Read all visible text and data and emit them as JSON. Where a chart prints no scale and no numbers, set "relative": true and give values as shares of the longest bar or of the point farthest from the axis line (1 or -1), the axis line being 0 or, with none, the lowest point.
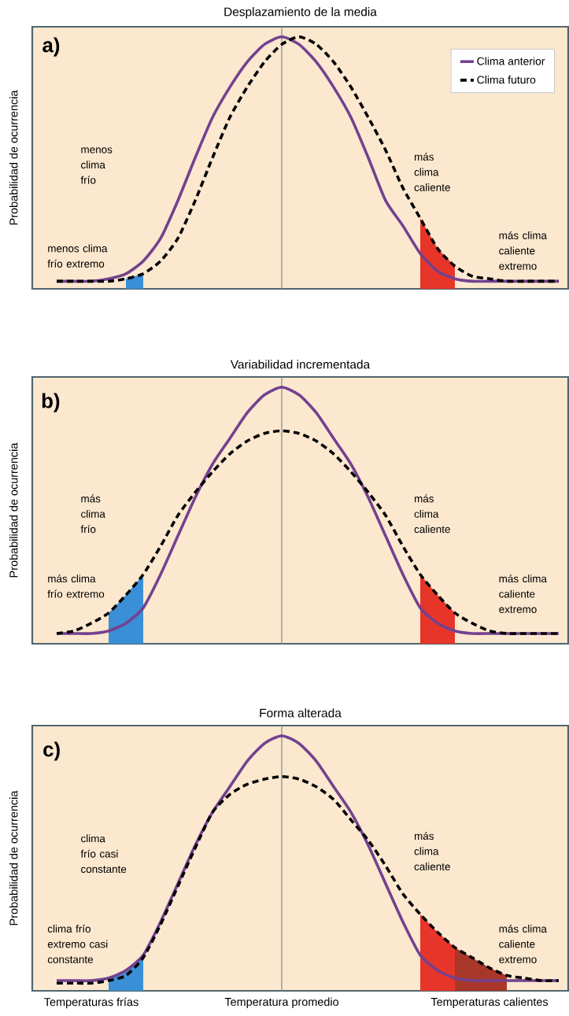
{
  "chart_data": [
    {
      "type": "line",
      "title": "Desplazamiento de la media",
      "ylabel": "Probabilidad de ocurrencia",
      "relative": true,
      "tick_labels": false,
      "legend": "top right",
      "marker": "none",
      "categories": [
        null,
        null,
        "Temperaturas frías",
        null,
        null,
        null,
        null,
        null,
        null,
        null,
        null,
        null,
        null,
        "Temperatura promedio",
        null,
        null,
        null,
        null,
        null,
        null,
        null,
        null,
        null,
        null,
        null,
        "Temperaturas calientes",
        null,
        null,
        null,
        null
      ],
      "annotations": [
        "a)",
        "menos clima frío",
        "menos clima frío extremo",
        "más clima caliente",
        "más clima caliente extremo"
      ],
      "ref_lines": [
        {
          "axis": "x",
          "value": "Temperatura promedio",
          "color": "#7f939b"
        }
      ],
      "series": [
        {
          "type": "area",
          "color": "#3a8fd6",
          "values": [
            null,
            null,
            null,
            null,
            0.04,
            0.06,
            null,
            null,
            null,
            null,
            null,
            null,
            null,
            null,
            null,
            null,
            null,
            null,
            null,
            null,
            null,
            null,
            null,
            null,
            null,
            null,
            null,
            null,
            null,
            null
          ]
        },
        {
          "type": "area",
          "color": "#e8352a",
          "values": [
            null,
            null,
            null,
            null,
            null,
            null,
            null,
            null,
            null,
            null,
            null,
            null,
            null,
            null,
            null,
            null,
            null,
            null,
            null,
            null,
            null,
            0.28,
            0.16,
            0.09,
            null,
            null,
            null,
            null,
            null,
            null
          ]
        },
        {
          "name": "Clima anterior",
          "color": "#74418f",
          "line_style": "solid",
          "values": [
            0.03,
            0.03,
            0.03,
            0.04,
            0.06,
            0.11,
            0.2,
            0.35,
            0.52,
            0.68,
            0.8,
            0.9,
            0.97,
            1,
            0.97,
            0.9,
            0.8,
            0.68,
            0.52,
            0.35,
            0.25,
            0.14,
            0.07,
            0.04,
            0.03,
            0.03,
            0.03,
            0.03,
            0.03,
            0.03
          ]
        },
        {
          "name": "Clima futuro",
          "color": "#000000",
          "line_style": "dashed",
          "values": [
            0.03,
            0.03,
            0.03,
            0.03,
            0.04,
            0.06,
            0.11,
            0.2,
            0.35,
            0.52,
            0.68,
            0.8,
            0.9,
            0.97,
            1,
            0.97,
            0.9,
            0.8,
            0.68,
            0.55,
            0.4,
            0.28,
            0.16,
            0.09,
            0.05,
            0.04,
            0.03,
            0.03,
            0.03,
            0.03
          ]
        }
      ]
    },
    {
      "type": "line",
      "title": "Variabilidad incrementada",
      "ylabel": "Probabilidad de ocurrencia",
      "relative": true,
      "tick_labels": false,
      "marker": "none",
      "categories": [
        null,
        null,
        "Temperaturas frías",
        null,
        null,
        null,
        null,
        null,
        null,
        null,
        null,
        null,
        null,
        "Temperatura promedio",
        null,
        null,
        null,
        null,
        null,
        null,
        null,
        null,
        null,
        null,
        null,
        "Temperaturas calientes",
        null,
        null,
        null,
        null
      ],
      "annotations": [
        "b)",
        "más clima frío",
        "más clima frío extremo",
        "más clima caliente",
        "más clima caliente extremo"
      ],
      "ref_lines": [
        {
          "axis": "x",
          "value": "Temperatura promedio",
          "color": "#7f939b"
        }
      ],
      "series": [
        {
          "type": "area",
          "color": "#3a8fd6",
          "values": [
            null,
            null,
            null,
            0.12,
            0.19,
            0.27,
            null,
            null,
            null,
            null,
            null,
            null,
            null,
            null,
            null,
            null,
            null,
            null,
            null,
            null,
            null,
            null,
            null,
            null,
            null,
            null,
            null,
            null,
            null,
            null
          ]
        },
        {
          "type": "area",
          "color": "#e8352a",
          "values": [
            null,
            null,
            null,
            null,
            null,
            null,
            null,
            null,
            null,
            null,
            null,
            null,
            null,
            null,
            null,
            null,
            null,
            null,
            null,
            null,
            null,
            0.27,
            0.19,
            0.12,
            null,
            null,
            null,
            null,
            null,
            null
          ]
        },
        {
          "color": "#74418f",
          "line_style": "solid",
          "values": [
            0.04,
            0.04,
            0.04,
            0.05,
            0.08,
            0.14,
            0.27,
            0.42,
            0.57,
            0.7,
            0.8,
            0.9,
            0.97,
            1,
            0.97,
            0.9,
            0.8,
            0.7,
            0.57,
            0.42,
            0.27,
            0.14,
            0.08,
            0.05,
            0.04,
            0.04,
            0.04,
            0.04,
            0.04,
            0.04
          ]
        },
        {
          "color": "#000000",
          "line_style": "dashed",
          "values": [
            0.04,
            0.05,
            0.08,
            0.12,
            0.19,
            0.27,
            0.38,
            0.5,
            0.59,
            0.67,
            0.74,
            0.79,
            0.82,
            0.83,
            0.82,
            0.79,
            0.74,
            0.67,
            0.59,
            0.5,
            0.38,
            0.27,
            0.19,
            0.12,
            0.08,
            0.05,
            0.04,
            0.04,
            0.04,
            0.04
          ]
        }
      ]
    },
    {
      "type": "line",
      "title": "Forma alterada",
      "ylabel": "Probabilidad de ocurrencia",
      "relative": true,
      "tick_labels": "x",
      "marker": "none",
      "categories": [
        null,
        null,
        "Temperaturas frías",
        null,
        null,
        null,
        null,
        null,
        null,
        null,
        null,
        null,
        null,
        "Temperatura promedio",
        null,
        null,
        null,
        null,
        null,
        null,
        null,
        null,
        null,
        null,
        null,
        "Temperaturas calientes",
        null,
        null,
        null,
        null
      ],
      "annotations": [
        "c)",
        "clima frío casi constante",
        "clima frío extremo casi constante",
        "más clima caliente",
        "más clima caliente extremo"
      ],
      "ref_lines": [
        {
          "axis": "x",
          "value": "Temperatura promedio",
          "color": "#7f939b"
        }
      ],
      "series": [
        {
          "type": "area",
          "color": "#3a8fd6",
          "values": [
            null,
            null,
            null,
            0.05,
            0.08,
            0.14,
            null,
            null,
            null,
            null,
            null,
            null,
            null,
            null,
            null,
            null,
            null,
            null,
            null,
            null,
            null,
            null,
            null,
            null,
            null,
            null,
            null,
            null,
            null,
            null
          ]
        },
        {
          "type": "area",
          "color": "#e8352a",
          "values": [
            null,
            null,
            null,
            null,
            null,
            null,
            null,
            null,
            null,
            null,
            null,
            null,
            null,
            null,
            null,
            null,
            null,
            null,
            null,
            null,
            null,
            0.3,
            0.23,
            0.17,
            null,
            null,
            null,
            null,
            null,
            null
          ]
        },
        {
          "type": "area",
          "color": "#a8372a",
          "values": [
            null,
            null,
            null,
            null,
            null,
            null,
            null,
            null,
            null,
            null,
            null,
            null,
            null,
            null,
            null,
            null,
            null,
            null,
            null,
            null,
            null,
            null,
            null,
            0.17,
            0.13,
            0.09,
            0.06,
            null,
            null,
            null
          ]
        },
        {
          "color": "#74418f",
          "line_style": "solid",
          "values": [
            0.04,
            0.04,
            0.04,
            0.05,
            0.08,
            0.14,
            0.27,
            0.42,
            0.57,
            0.7,
            0.8,
            0.9,
            0.97,
            1,
            0.97,
            0.9,
            0.8,
            0.7,
            0.57,
            0.42,
            0.27,
            0.14,
            0.08,
            0.05,
            0.04,
            0.04,
            0.04,
            0.04,
            0.04,
            0.04
          ]
        },
        {
          "color": "#000000",
          "line_style": "dashed",
          "values": [
            0.03,
            0.03,
            0.03,
            0.04,
            0.06,
            0.13,
            0.26,
            0.41,
            0.56,
            0.7,
            0.77,
            0.81,
            0.83,
            0.84,
            0.83,
            0.8,
            0.75,
            0.67,
            0.59,
            0.49,
            0.38,
            0.3,
            0.23,
            0.17,
            0.13,
            0.09,
            0.06,
            0.05,
            0.04,
            0.04
          ]
        }
      ]
    }
  ]
}
